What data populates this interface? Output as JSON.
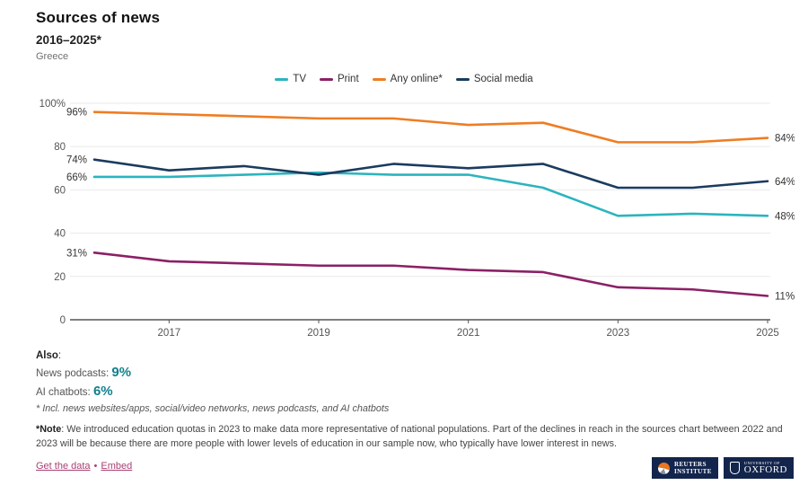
{
  "header": {
    "title": "Sources of news",
    "subtitle": "2016–2025*",
    "region": "Greece"
  },
  "chart_data": {
    "type": "line",
    "title": "Sources of news",
    "x": [
      2016,
      2017,
      2018,
      2019,
      2020,
      2021,
      2022,
      2023,
      2024,
      2025
    ],
    "x_tick_labels": [
      "2017",
      "2019",
      "2021",
      "2023",
      "2025"
    ],
    "y_ticks": [
      100,
      80,
      60,
      40,
      20,
      0
    ],
    "y_tick_labels": [
      "100%",
      "80",
      "60",
      "40",
      "20",
      "0"
    ],
    "ylim": [
      0,
      100
    ],
    "grid": "horizontal",
    "legend_position": "top",
    "series": [
      {
        "name": "TV",
        "color": "#2CB4BE",
        "values": [
          66,
          66,
          67,
          68,
          67,
          67,
          61,
          48,
          49,
          48
        ],
        "start_label": "66%",
        "end_label": "48%"
      },
      {
        "name": "Print",
        "color": "#8B2066",
        "values": [
          31,
          27,
          26,
          25,
          25,
          23,
          22,
          15,
          14,
          11
        ],
        "start_label": "31%",
        "end_label": "11%"
      },
      {
        "name": "Any online*",
        "color": "#EF7D23",
        "values": [
          96,
          95,
          94,
          93,
          93,
          90,
          91,
          82,
          82,
          84
        ],
        "start_label": "96%",
        "end_label": "84%"
      },
      {
        "name": "Social media",
        "color": "#1B3B5F",
        "values": [
          74,
          69,
          71,
          67,
          72,
          70,
          72,
          61,
          61,
          64
        ],
        "start_label": "74%",
        "end_label": "64%"
      }
    ]
  },
  "also": {
    "heading": "Also",
    "colon": ":",
    "items": [
      {
        "label": "News podcasts:",
        "value": "9%"
      },
      {
        "label": "AI chatbots:",
        "value": "6%"
      }
    ]
  },
  "footnote": "* Incl. news websites/apps, social/video networks, news podcasts, and AI chatbots",
  "note": {
    "bold": "*Note",
    "text": ": We introduced education quotas in 2023 to make data more representative of national populations. Part of the declines in reach in the sources chart between 2022 and 2023 will be because there are more people with lower levels of education in our sample now, who typically have lower interest in news."
  },
  "footer": {
    "links": [
      {
        "label": "Get the data"
      },
      {
        "label": "Embed"
      }
    ],
    "separator": "•"
  },
  "logos": {
    "reuters": {
      "line1": "REUTERS",
      "line2": "INSTITUTE"
    },
    "oxford": {
      "line1": "UNIVERSITY OF",
      "line2": "OXFORD"
    }
  },
  "colors": {
    "tv": "#2CB4BE",
    "print": "#8B2066",
    "any_online": "#EF7D23",
    "social_media": "#1B3B5F",
    "link": "#A93F74",
    "accent_value": "#12808C",
    "logo_background": "#13254C"
  }
}
